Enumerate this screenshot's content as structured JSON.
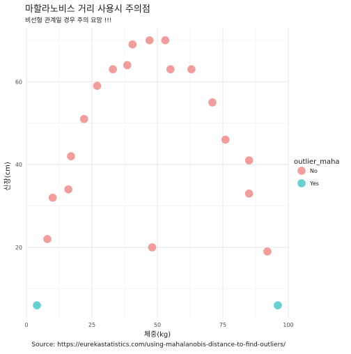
{
  "chart_data": {
    "type": "scatter",
    "title": "마할라노비스 거리 사용시 주의점",
    "subtitle": "비선형 관계일 경우 주의 요망 !!!",
    "xlabel": "체중(kg)",
    "ylabel": "신장(cm)",
    "caption": "Source: https://eurekastatistics.com/using-mahalanobis-distance-to-find-outliers/",
    "xlim": [
      0,
      100
    ],
    "ylim": [
      3,
      73
    ],
    "x_ticks": [
      0,
      25,
      50,
      75,
      100
    ],
    "y_ticks": [
      20,
      40,
      60
    ],
    "grid": true,
    "legend": {
      "title": "outlier_maha",
      "position": "right",
      "entries": [
        {
          "label": "No",
          "color": "#f08080"
        },
        {
          "label": "Yes",
          "color": "#3cc4c4"
        }
      ]
    },
    "series": [
      {
        "name": "No",
        "color": "#f08080",
        "points": [
          {
            "x": 8,
            "y": 22
          },
          {
            "x": 10,
            "y": 32
          },
          {
            "x": 16,
            "y": 34
          },
          {
            "x": 17,
            "y": 42
          },
          {
            "x": 22,
            "y": 51
          },
          {
            "x": 27,
            "y": 59
          },
          {
            "x": 33,
            "y": 63
          },
          {
            "x": 38.5,
            "y": 64
          },
          {
            "x": 40.5,
            "y": 69
          },
          {
            "x": 47,
            "y": 70
          },
          {
            "x": 48,
            "y": 20
          },
          {
            "x": 53,
            "y": 70
          },
          {
            "x": 55,
            "y": 63
          },
          {
            "x": 63,
            "y": 63
          },
          {
            "x": 71,
            "y": 55
          },
          {
            "x": 76,
            "y": 46
          },
          {
            "x": 85,
            "y": 41
          },
          {
            "x": 85,
            "y": 33
          },
          {
            "x": 92,
            "y": 19
          }
        ]
      },
      {
        "name": "Yes",
        "color": "#3cc4c4",
        "points": [
          {
            "x": 4,
            "y": 6
          },
          {
            "x": 96,
            "y": 6
          }
        ]
      }
    ]
  }
}
